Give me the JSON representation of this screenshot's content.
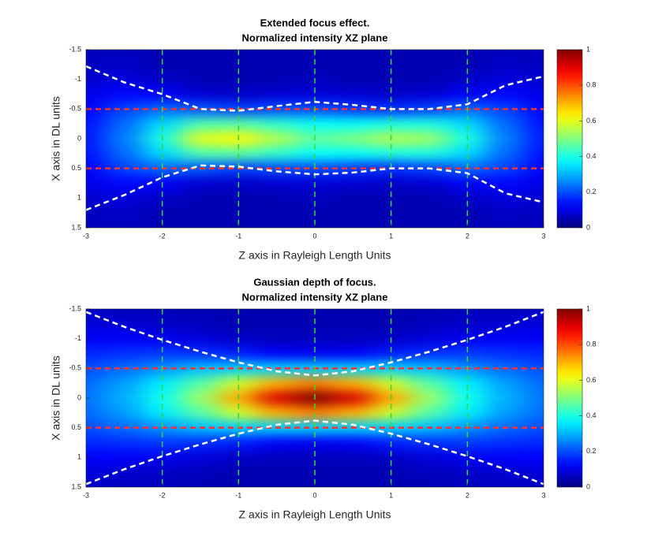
{
  "chart_data": [
    {
      "type": "heatmap",
      "title": [
        "Extended focus effect.",
        "Normalized intensity XZ plane"
      ],
      "xlabel": "Z axis in Rayleigh Length Units",
      "ylabel": "X axis in DL units",
      "x": [
        -3,
        -2.5,
        -2,
        -1.5,
        -1,
        -0.5,
        0,
        0.5,
        1,
        1.5,
        2,
        2.5,
        3
      ],
      "y": [
        -1.5,
        -1.25,
        -1,
        -0.75,
        -0.5,
        -0.25,
        0,
        0.25,
        0.5,
        0.75,
        1,
        1.25,
        1.5
      ],
      "z": [
        [
          0.06,
          0.06,
          0.05,
          0.05,
          0.05,
          0.05,
          0.05,
          0.05,
          0.05,
          0.05,
          0.05,
          0.06,
          0.06
        ],
        [
          0.06,
          0.07,
          0.05,
          0.05,
          0.05,
          0.05,
          0.05,
          0.05,
          0.05,
          0.05,
          0.05,
          0.07,
          0.06
        ],
        [
          0.08,
          0.09,
          0.07,
          0.05,
          0.05,
          0.05,
          0.06,
          0.05,
          0.05,
          0.05,
          0.07,
          0.09,
          0.08
        ],
        [
          0.1,
          0.13,
          0.12,
          0.08,
          0.07,
          0.08,
          0.09,
          0.08,
          0.07,
          0.08,
          0.12,
          0.13,
          0.1
        ],
        [
          0.12,
          0.19,
          0.23,
          0.21,
          0.19,
          0.2,
          0.2,
          0.18,
          0.17,
          0.19,
          0.23,
          0.19,
          0.12
        ],
        [
          0.14,
          0.23,
          0.34,
          0.45,
          0.46,
          0.42,
          0.38,
          0.38,
          0.4,
          0.4,
          0.34,
          0.23,
          0.14
        ],
        [
          0.15,
          0.25,
          0.4,
          0.6,
          0.63,
          0.55,
          0.47,
          0.5,
          0.55,
          0.53,
          0.4,
          0.25,
          0.15
        ],
        [
          0.14,
          0.23,
          0.34,
          0.45,
          0.46,
          0.42,
          0.38,
          0.38,
          0.4,
          0.4,
          0.34,
          0.23,
          0.14
        ],
        [
          0.12,
          0.19,
          0.23,
          0.21,
          0.19,
          0.2,
          0.2,
          0.18,
          0.17,
          0.19,
          0.23,
          0.19,
          0.12
        ],
        [
          0.1,
          0.13,
          0.12,
          0.08,
          0.07,
          0.08,
          0.09,
          0.08,
          0.07,
          0.08,
          0.12,
          0.13,
          0.1
        ],
        [
          0.08,
          0.09,
          0.07,
          0.05,
          0.05,
          0.05,
          0.06,
          0.05,
          0.05,
          0.05,
          0.07,
          0.09,
          0.08
        ],
        [
          0.06,
          0.07,
          0.05,
          0.05,
          0.05,
          0.05,
          0.05,
          0.05,
          0.05,
          0.05,
          0.05,
          0.07,
          0.06
        ],
        [
          0.06,
          0.06,
          0.05,
          0.05,
          0.05,
          0.05,
          0.05,
          0.05,
          0.05,
          0.05,
          0.05,
          0.06,
          0.06
        ]
      ],
      "colormap": "jet",
      "clim": [
        0,
        1
      ],
      "cticks": [
        0,
        0.2,
        0.4,
        0.6,
        0.8,
        1
      ],
      "xlim": [
        -3,
        3
      ],
      "xticks": [
        -3,
        -2,
        -1,
        0,
        1,
        2,
        3
      ],
      "ylim": [
        -1.5,
        1.5
      ],
      "y_reversed": true,
      "yticks": [
        -1.5,
        -1,
        -0.5,
        0,
        0.5,
        1,
        1.5
      ],
      "hlines": [
        -0.5,
        0.5
      ],
      "hline_color": "#ff3030",
      "vlines": [
        -2,
        -1,
        0,
        1,
        2
      ],
      "vline_color": "#33dd33",
      "series": [
        {
          "color": "#ffffff",
          "x": [
            -3,
            -2.5,
            -2,
            -1.5,
            -1,
            -0.5,
            0,
            0.5,
            1,
            1.5,
            2,
            2.5,
            3
          ],
          "values": [
            -1.22,
            -0.95,
            -0.75,
            -0.5,
            -0.47,
            -0.55,
            -0.62,
            -0.57,
            -0.5,
            -0.5,
            -0.58,
            -0.9,
            -1.05
          ]
        },
        {
          "color": "#ffffff",
          "x": [
            -3,
            -2.5,
            -2,
            -1.5,
            -1,
            -0.5,
            0,
            0.5,
            1,
            1.5,
            2,
            2.5,
            3
          ],
          "values": [
            1.2,
            0.95,
            0.65,
            0.45,
            0.47,
            0.55,
            0.6,
            0.57,
            0.5,
            0.5,
            0.58,
            0.92,
            1.07
          ]
        }
      ]
    },
    {
      "type": "heatmap",
      "title": [
        "Gaussian depth of focus.",
        "Normalized intensity XZ plane"
      ],
      "xlabel": "Z axis in Rayleigh Length Units",
      "ylabel": "X axis in DL units",
      "x": [
        -3,
        -2.5,
        -2,
        -1.5,
        -1,
        -0.5,
        0,
        0.5,
        1,
        1.5,
        2,
        2.5,
        3
      ],
      "y": [
        -1.5,
        -1.25,
        -1,
        -0.75,
        -0.5,
        -0.25,
        0,
        0.25,
        0.5,
        0.75,
        1,
        1.25,
        1.5
      ],
      "z": [
        [
          0.07,
          0.06,
          0.06,
          0.05,
          0.05,
          0.05,
          0.05,
          0.05,
          0.05,
          0.05,
          0.06,
          0.06,
          0.07
        ],
        [
          0.09,
          0.08,
          0.07,
          0.06,
          0.05,
          0.05,
          0.05,
          0.05,
          0.05,
          0.06,
          0.07,
          0.08,
          0.09
        ],
        [
          0.12,
          0.12,
          0.11,
          0.09,
          0.07,
          0.06,
          0.06,
          0.06,
          0.07,
          0.09,
          0.11,
          0.12,
          0.12
        ],
        [
          0.16,
          0.17,
          0.18,
          0.17,
          0.15,
          0.12,
          0.11,
          0.12,
          0.15,
          0.17,
          0.18,
          0.17,
          0.16
        ],
        [
          0.2,
          0.23,
          0.27,
          0.31,
          0.33,
          0.33,
          0.33,
          0.33,
          0.33,
          0.31,
          0.27,
          0.23,
          0.2
        ],
        [
          0.23,
          0.28,
          0.36,
          0.46,
          0.58,
          0.7,
          0.75,
          0.7,
          0.58,
          0.46,
          0.36,
          0.28,
          0.23
        ],
        [
          0.24,
          0.3,
          0.39,
          0.53,
          0.71,
          0.91,
          1.0,
          0.91,
          0.71,
          0.53,
          0.39,
          0.3,
          0.24
        ],
        [
          0.23,
          0.28,
          0.36,
          0.46,
          0.58,
          0.7,
          0.75,
          0.7,
          0.58,
          0.46,
          0.36,
          0.28,
          0.23
        ],
        [
          0.2,
          0.23,
          0.27,
          0.31,
          0.33,
          0.33,
          0.33,
          0.33,
          0.33,
          0.31,
          0.27,
          0.23,
          0.2
        ],
        [
          0.16,
          0.17,
          0.18,
          0.17,
          0.15,
          0.12,
          0.11,
          0.12,
          0.15,
          0.17,
          0.18,
          0.17,
          0.16
        ],
        [
          0.12,
          0.12,
          0.11,
          0.09,
          0.07,
          0.06,
          0.06,
          0.06,
          0.07,
          0.09,
          0.11,
          0.12,
          0.12
        ],
        [
          0.09,
          0.08,
          0.07,
          0.06,
          0.05,
          0.05,
          0.05,
          0.05,
          0.05,
          0.06,
          0.07,
          0.08,
          0.09
        ],
        [
          0.07,
          0.06,
          0.06,
          0.05,
          0.05,
          0.05,
          0.05,
          0.05,
          0.05,
          0.05,
          0.06,
          0.06,
          0.07
        ]
      ],
      "colormap": "jet",
      "clim": [
        0,
        1
      ],
      "cticks": [
        0,
        0.2,
        0.4,
        0.6,
        0.8,
        1
      ],
      "xlim": [
        -3,
        3
      ],
      "xticks": [
        -3,
        -2,
        -1,
        0,
        1,
        2,
        3
      ],
      "ylim": [
        -1.5,
        1.5
      ],
      "y_reversed": true,
      "yticks": [
        -1.5,
        -1,
        -0.5,
        0,
        0.5,
        1,
        1.5
      ],
      "hlines": [
        -0.5,
        0.5
      ],
      "hline_color": "#ff3030",
      "vlines": [
        -2,
        -1,
        0,
        1,
        2
      ],
      "vline_color": "#33dd33",
      "series": [
        {
          "color": "#ffffff",
          "x": [
            -3,
            -2.5,
            -2,
            -1.5,
            -1,
            -0.5,
            0,
            0.5,
            1,
            1.5,
            2,
            2.5,
            3
          ],
          "values": [
            -1.45,
            -1.2,
            -0.98,
            -0.78,
            -0.6,
            -0.45,
            -0.38,
            -0.45,
            -0.6,
            -0.78,
            -0.98,
            -1.2,
            -1.45
          ]
        },
        {
          "color": "#ffffff",
          "x": [
            -3,
            -2.5,
            -2,
            -1.5,
            -1,
            -0.5,
            0,
            0.5,
            1,
            1.5,
            2,
            2.5,
            3
          ],
          "values": [
            1.45,
            1.2,
            0.98,
            0.78,
            0.6,
            0.45,
            0.38,
            0.45,
            0.6,
            0.78,
            0.98,
            1.2,
            1.45
          ]
        }
      ]
    }
  ]
}
